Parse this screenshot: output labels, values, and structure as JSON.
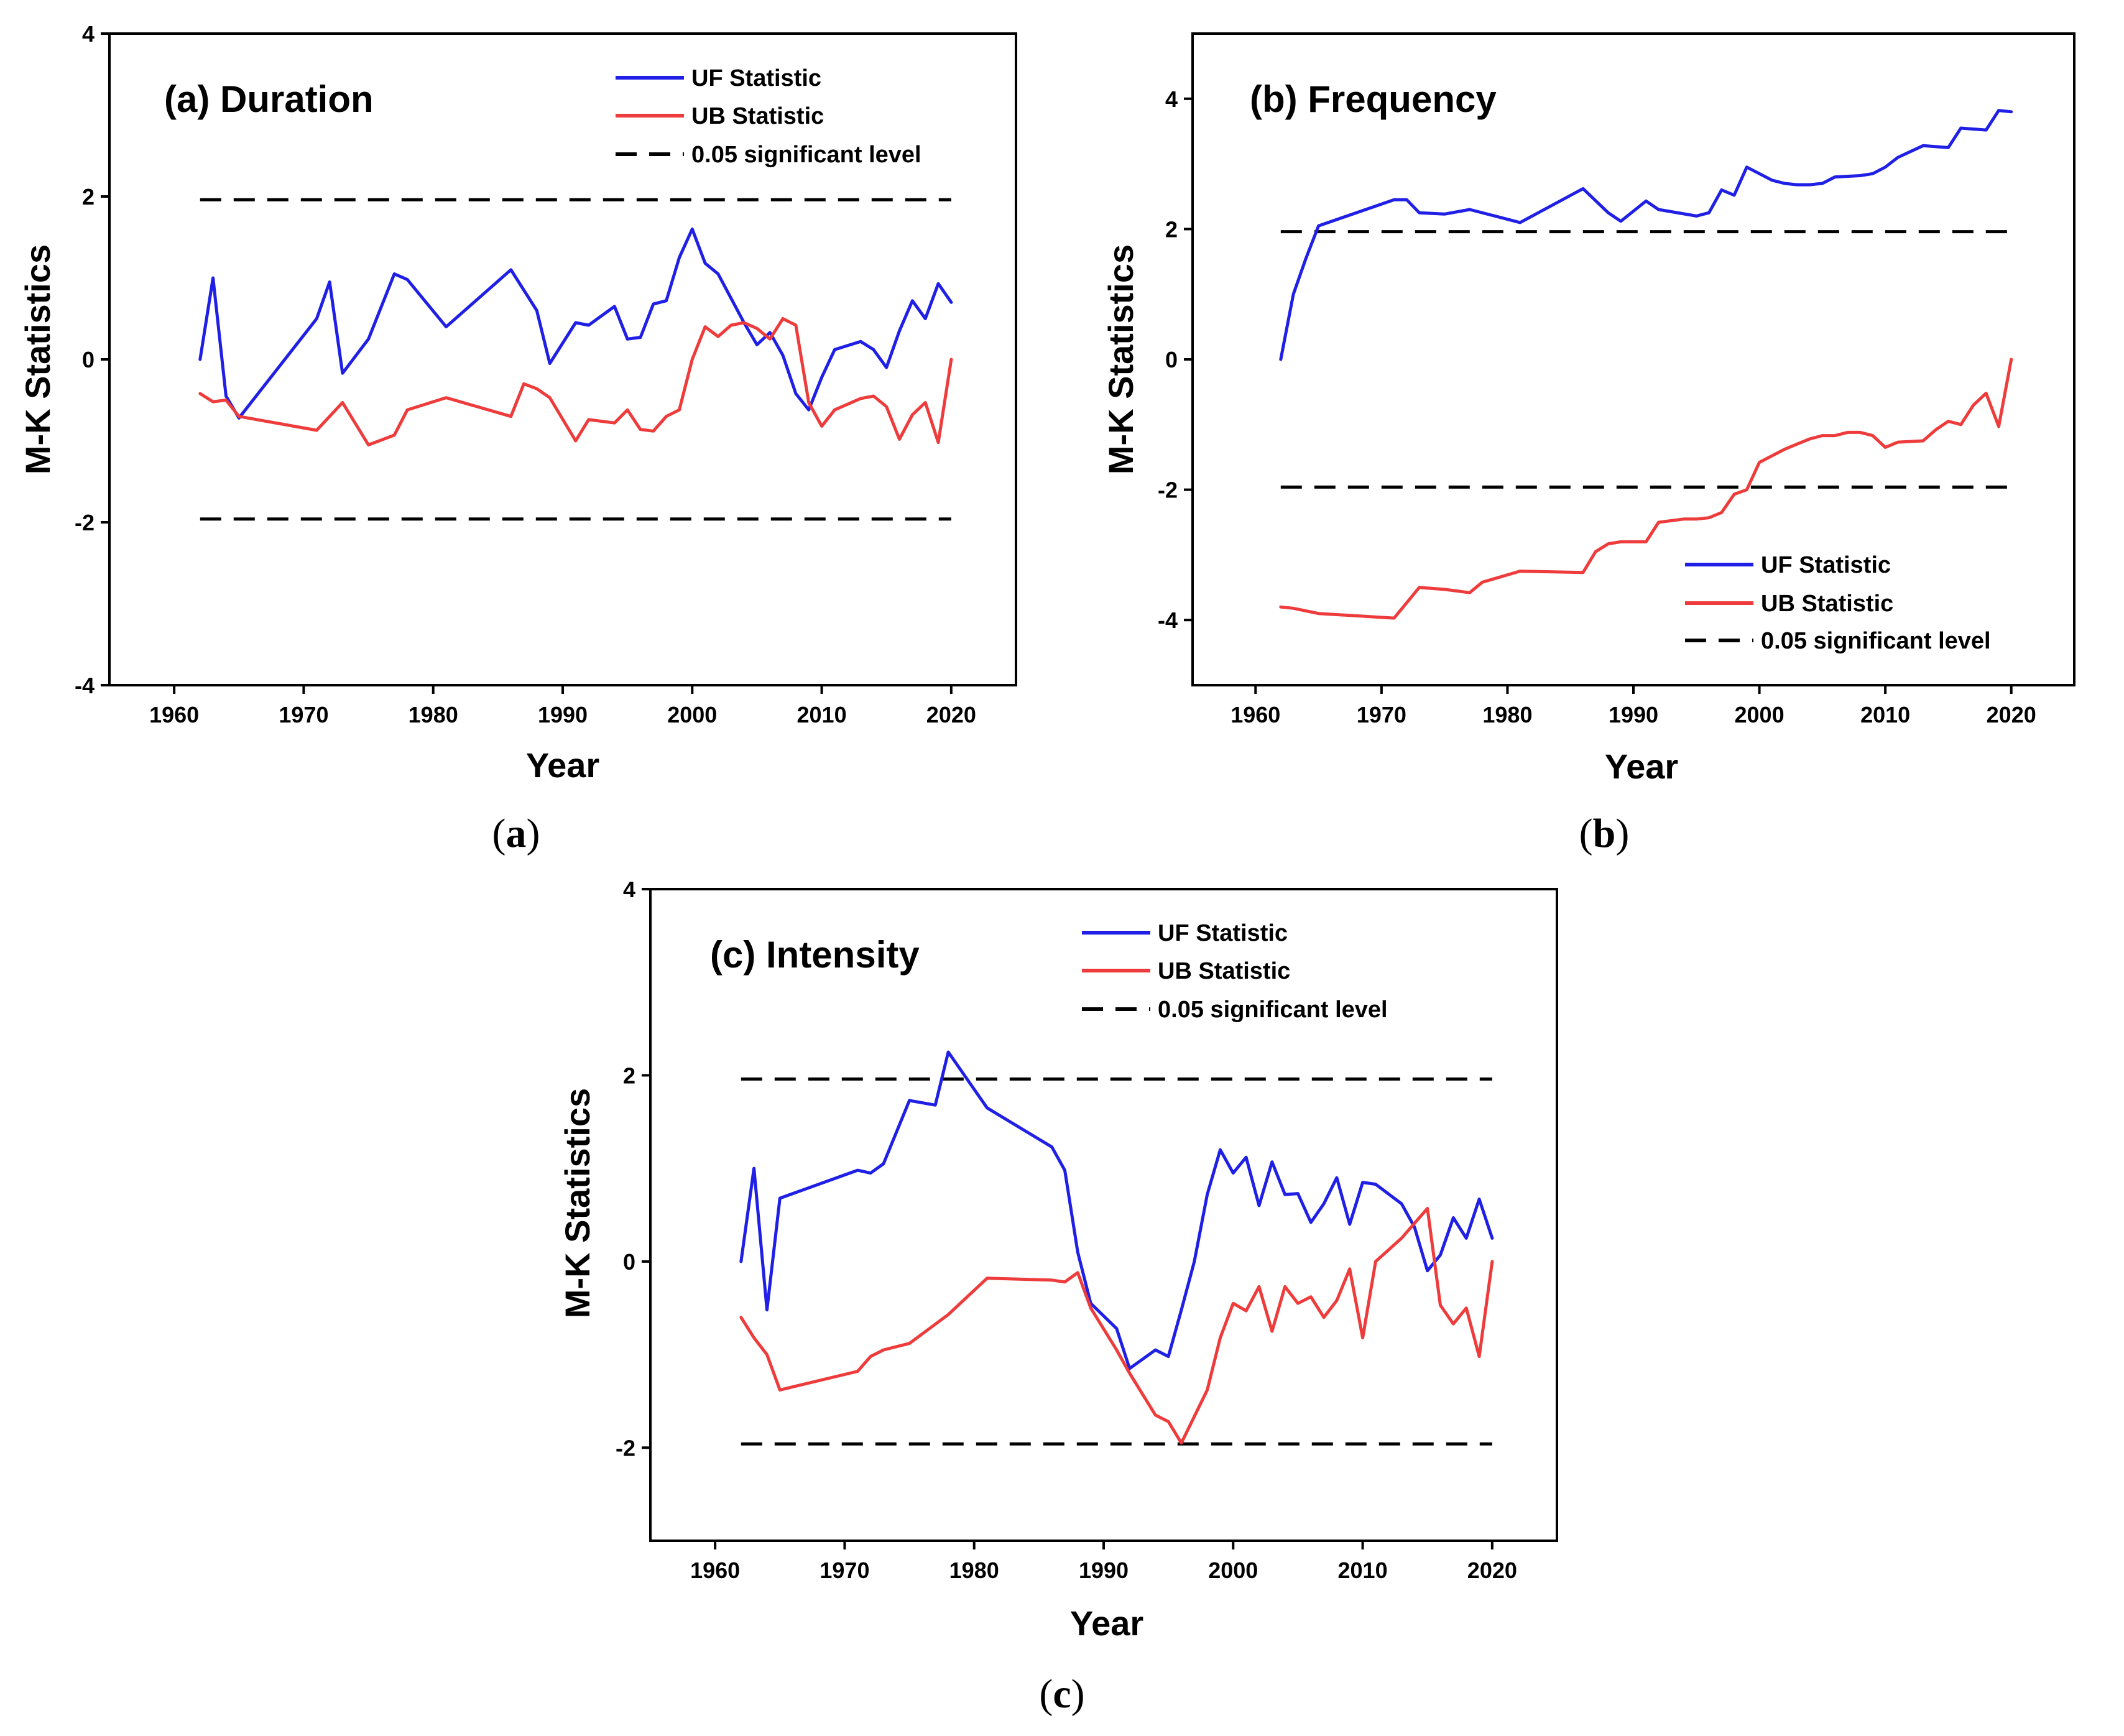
{
  "figure": {
    "captions": [
      "a",
      "b",
      "c"
    ]
  },
  "chart_data": [
    {
      "type": "line",
      "title": "(a) Duration",
      "xlabel": "Year",
      "ylabel": "M-K Statistics",
      "xlim": [
        1955,
        2025
      ],
      "ylim": [
        -4,
        4
      ],
      "xticks": [
        1960,
        1970,
        1980,
        1990,
        2000,
        2010,
        2020
      ],
      "yticks": [
        -4,
        -2,
        0,
        2,
        4
      ],
      "legend_position": "top-right",
      "significance_level": 1.96,
      "series": [
        {
          "name": "UF Statistic",
          "color": "#1f1fe6",
          "points": [
            [
              1962,
              0
            ],
            [
              1963,
              1.0
            ],
            [
              1964,
              -0.45
            ],
            [
              1965,
              -0.72
            ],
            [
              1971,
              0.5
            ],
            [
              1972,
              0.95
            ],
            [
              1973,
              -0.17
            ],
            [
              1975,
              0.25
            ],
            [
              1977,
              1.05
            ],
            [
              1978,
              0.98
            ],
            [
              1981,
              0.4
            ],
            [
              1986,
              1.1
            ],
            [
              1988,
              0.6
            ],
            [
              1989,
              -0.05
            ],
            [
              1991,
              0.45
            ],
            [
              1992,
              0.42
            ],
            [
              1994,
              0.65
            ],
            [
              1995,
              0.25
            ],
            [
              1996,
              0.27
            ],
            [
              1997,
              0.68
            ],
            [
              1998,
              0.72
            ],
            [
              1999,
              1.25
            ],
            [
              2000,
              1.6
            ],
            [
              2001,
              1.18
            ],
            [
              2002,
              1.05
            ],
            [
              2003,
              0.75
            ],
            [
              2004,
              0.45
            ],
            [
              2005,
              0.18
            ],
            [
              2006,
              0.33
            ],
            [
              2007,
              0.05
            ],
            [
              2008,
              -0.42
            ],
            [
              2009,
              -0.62
            ],
            [
              2010,
              -0.22
            ],
            [
              2011,
              0.12
            ],
            [
              2013,
              0.22
            ],
            [
              2014,
              0.12
            ],
            [
              2015,
              -0.1
            ],
            [
              2016,
              0.35
            ],
            [
              2017,
              0.72
            ],
            [
              2018,
              0.5
            ],
            [
              2019,
              0.93
            ],
            [
              2020,
              0.7
            ]
          ]
        },
        {
          "name": "UB Statistic",
          "color": "#ee3b3b",
          "points": [
            [
              1962,
              -0.42
            ],
            [
              1963,
              -0.52
            ],
            [
              1964,
              -0.5
            ],
            [
              1965,
              -0.7
            ],
            [
              1971,
              -0.87
            ],
            [
              1973,
              -0.53
            ],
            [
              1975,
              -1.05
            ],
            [
              1977,
              -0.93
            ],
            [
              1978,
              -0.62
            ],
            [
              1981,
              -0.47
            ],
            [
              1986,
              -0.7
            ],
            [
              1987,
              -0.3
            ],
            [
              1988,
              -0.36
            ],
            [
              1989,
              -0.47
            ],
            [
              1991,
              -1.0
            ],
            [
              1992,
              -0.74
            ],
            [
              1994,
              -0.78
            ],
            [
              1995,
              -0.62
            ],
            [
              1996,
              -0.86
            ],
            [
              1997,
              -0.88
            ],
            [
              1998,
              -0.7
            ],
            [
              1999,
              -0.62
            ],
            [
              2000,
              0.0
            ],
            [
              2001,
              0.4
            ],
            [
              2002,
              0.28
            ],
            [
              2003,
              0.42
            ],
            [
              2004,
              0.45
            ],
            [
              2005,
              0.38
            ],
            [
              2006,
              0.25
            ],
            [
              2007,
              0.5
            ],
            [
              2008,
              0.42
            ],
            [
              2009,
              -0.53
            ],
            [
              2010,
              -0.82
            ],
            [
              2011,
              -0.62
            ],
            [
              2013,
              -0.48
            ],
            [
              2014,
              -0.45
            ],
            [
              2015,
              -0.58
            ],
            [
              2016,
              -0.98
            ],
            [
              2017,
              -0.68
            ],
            [
              2018,
              -0.53
            ],
            [
              2019,
              -1.02
            ],
            [
              2020,
              0.0
            ]
          ]
        },
        {
          "name": "0.05 significant level",
          "color": "#000000",
          "style": "dashed",
          "values": [
            1.96,
            -1.96
          ]
        }
      ]
    },
    {
      "type": "line",
      "title": "(b) Frequency",
      "xlabel": "Year",
      "ylabel": "M-K Statistics",
      "xlim": [
        1955,
        2025
      ],
      "ylim": [
        -5,
        5
      ],
      "xticks": [
        1960,
        1970,
        1980,
        1990,
        2000,
        2010,
        2020
      ],
      "yticks": [
        -4,
        -2,
        0,
        2,
        4
      ],
      "legend_position": "bottom-right",
      "significance_level": 1.96,
      "series": [
        {
          "name": "UF Statistic",
          "color": "#1f1fe6",
          "points": [
            [
              1962,
              0
            ],
            [
              1963,
              1.0
            ],
            [
              1964,
              1.55
            ],
            [
              1965,
              2.05
            ],
            [
              1971,
              2.45
            ],
            [
              1972,
              2.45
            ],
            [
              1973,
              2.25
            ],
            [
              1975,
              2.23
            ],
            [
              1977,
              2.3
            ],
            [
              1981,
              2.1
            ],
            [
              1986,
              2.62
            ],
            [
              1988,
              2.25
            ],
            [
              1989,
              2.12
            ],
            [
              1991,
              2.43
            ],
            [
              1992,
              2.3
            ],
            [
              1995,
              2.2
            ],
            [
              1996,
              2.25
            ],
            [
              1997,
              2.6
            ],
            [
              1998,
              2.52
            ],
            [
              1999,
              2.95
            ],
            [
              2000,
              2.85
            ],
            [
              2001,
              2.75
            ],
            [
              2002,
              2.7
            ],
            [
              2003,
              2.68
            ],
            [
              2004,
              2.68
            ],
            [
              2005,
              2.7
            ],
            [
              2006,
              2.8
            ],
            [
              2008,
              2.82
            ],
            [
              2009,
              2.85
            ],
            [
              2010,
              2.95
            ],
            [
              2011,
              3.1
            ],
            [
              2013,
              3.28
            ],
            [
              2015,
              3.25
            ],
            [
              2016,
              3.55
            ],
            [
              2018,
              3.52
            ],
            [
              2019,
              3.82
            ],
            [
              2020,
              3.8
            ]
          ]
        },
        {
          "name": "UB Statistic",
          "color": "#ee3b3b",
          "points": [
            [
              1962,
              -3.8
            ],
            [
              1963,
              -3.82
            ],
            [
              1965,
              -3.9
            ],
            [
              1971,
              -3.97
            ],
            [
              1973,
              -3.5
            ],
            [
              1975,
              -3.53
            ],
            [
              1977,
              -3.58
            ],
            [
              1978,
              -3.42
            ],
            [
              1981,
              -3.25
            ],
            [
              1986,
              -3.27
            ],
            [
              1987,
              -2.95
            ],
            [
              1988,
              -2.83
            ],
            [
              1989,
              -2.8
            ],
            [
              1991,
              -2.8
            ],
            [
              1992,
              -2.5
            ],
            [
              1994,
              -2.45
            ],
            [
              1995,
              -2.45
            ],
            [
              1996,
              -2.43
            ],
            [
              1997,
              -2.35
            ],
            [
              1998,
              -2.07
            ],
            [
              1999,
              -2.0
            ],
            [
              2000,
              -1.58
            ],
            [
              2001,
              -1.48
            ],
            [
              2002,
              -1.38
            ],
            [
              2003,
              -1.3
            ],
            [
              2004,
              -1.22
            ],
            [
              2005,
              -1.17
            ],
            [
              2006,
              -1.17
            ],
            [
              2007,
              -1.12
            ],
            [
              2008,
              -1.12
            ],
            [
              2009,
              -1.17
            ],
            [
              2010,
              -1.35
            ],
            [
              2011,
              -1.27
            ],
            [
              2013,
              -1.25
            ],
            [
              2014,
              -1.08
            ],
            [
              2015,
              -0.95
            ],
            [
              2016,
              -1.0
            ],
            [
              2017,
              -0.7
            ],
            [
              2018,
              -0.52
            ],
            [
              2019,
              -1.03
            ],
            [
              2020,
              0.0
            ]
          ]
        },
        {
          "name": "0.05 significant level",
          "color": "#000000",
          "style": "dashed",
          "values": [
            1.96,
            -1.96
          ]
        }
      ]
    },
    {
      "type": "line",
      "title": "(c) Intensity",
      "xlabel": "Year",
      "ylabel": "M-K Statistics",
      "xlim": [
        1955,
        2025
      ],
      "ylim": [
        -3,
        4
      ],
      "xticks": [
        1960,
        1970,
        1980,
        1990,
        2000,
        2010,
        2020
      ],
      "yticks": [
        -2,
        0,
        2,
        4
      ],
      "legend_position": "top-right",
      "significance_level": 1.96,
      "series": [
        {
          "name": "UF Statistic",
          "color": "#1f1fe6",
          "points": [
            [
              1962,
              0
            ],
            [
              1963,
              1.0
            ],
            [
              1964,
              -0.52
            ],
            [
              1965,
              0.68
            ],
            [
              1971,
              0.98
            ],
            [
              1972,
              0.95
            ],
            [
              1973,
              1.05
            ],
            [
              1975,
              1.73
            ],
            [
              1977,
              1.68
            ],
            [
              1978,
              2.25
            ],
            [
              1981,
              1.65
            ],
            [
              1986,
              1.23
            ],
            [
              1987,
              0.98
            ],
            [
              1988,
              0.1
            ],
            [
              1989,
              -0.45
            ],
            [
              1991,
              -0.72
            ],
            [
              1992,
              -1.15
            ],
            [
              1994,
              -0.95
            ],
            [
              1995,
              -1.02
            ],
            [
              1996,
              -0.52
            ],
            [
              1997,
              0.0
            ],
            [
              1998,
              0.72
            ],
            [
              1999,
              1.2
            ],
            [
              2000,
              0.95
            ],
            [
              2001,
              1.12
            ],
            [
              2002,
              0.6
            ],
            [
              2003,
              1.07
            ],
            [
              2004,
              0.72
            ],
            [
              2005,
              0.73
            ],
            [
              2006,
              0.42
            ],
            [
              2007,
              0.62
            ],
            [
              2008,
              0.9
            ],
            [
              2009,
              0.4
            ],
            [
              2010,
              0.85
            ],
            [
              2011,
              0.83
            ],
            [
              2013,
              0.62
            ],
            [
              2014,
              0.37
            ],
            [
              2015,
              -0.1
            ],
            [
              2016,
              0.07
            ],
            [
              2017,
              0.47
            ],
            [
              2018,
              0.25
            ],
            [
              2019,
              0.67
            ],
            [
              2020,
              0.25
            ]
          ]
        },
        {
          "name": "UB Statistic",
          "color": "#ee3b3b",
          "points": [
            [
              1962,
              -0.6
            ],
            [
              1963,
              -0.82
            ],
            [
              1964,
              -1.0
            ],
            [
              1965,
              -1.38
            ],
            [
              1971,
              -1.18
            ],
            [
              1972,
              -1.02
            ],
            [
              1973,
              -0.95
            ],
            [
              1975,
              -0.88
            ],
            [
              1978,
              -0.57
            ],
            [
              1981,
              -0.18
            ],
            [
              1986,
              -0.2
            ],
            [
              1987,
              -0.22
            ],
            [
              1988,
              -0.12
            ],
            [
              1989,
              -0.5
            ],
            [
              1991,
              -0.95
            ],
            [
              1992,
              -1.2
            ],
            [
              1994,
              -1.65
            ],
            [
              1995,
              -1.72
            ],
            [
              1996,
              -1.95
            ],
            [
              1998,
              -1.38
            ],
            [
              1999,
              -0.82
            ],
            [
              2000,
              -0.45
            ],
            [
              2001,
              -0.53
            ],
            [
              2002,
              -0.27
            ],
            [
              2003,
              -0.75
            ],
            [
              2004,
              -0.27
            ],
            [
              2005,
              -0.45
            ],
            [
              2006,
              -0.38
            ],
            [
              2007,
              -0.6
            ],
            [
              2008,
              -0.42
            ],
            [
              2009,
              -0.08
            ],
            [
              2010,
              -0.82
            ],
            [
              2011,
              0.0
            ],
            [
              2013,
              0.25
            ],
            [
              2015,
              0.57
            ],
            [
              2016,
              -0.47
            ],
            [
              2017,
              -0.67
            ],
            [
              2018,
              -0.5
            ],
            [
              2019,
              -1.02
            ],
            [
              2020,
              0.0
            ]
          ]
        },
        {
          "name": "0.05 significant level",
          "color": "#000000",
          "style": "dashed",
          "values": [
            1.96,
            -1.96
          ]
        }
      ]
    }
  ]
}
